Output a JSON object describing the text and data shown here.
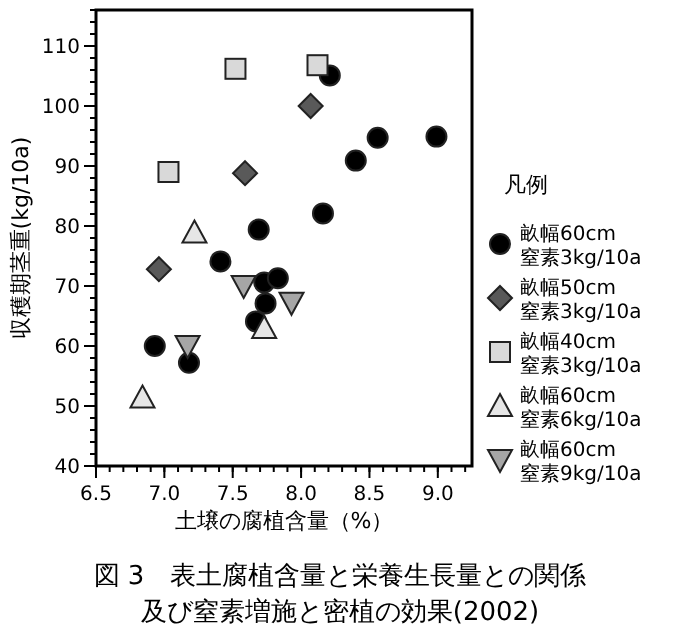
{
  "chart_data": {
    "type": "scatter",
    "title": "図 3　表土腐植含量と栄養生長量との関係及び窒素増施と密植の効果(2002)",
    "xlabel": "土壌の腐植含量（%）",
    "ylabel": "収穫期茎重(kg/10a)",
    "legend_title": "凡例",
    "legend": "right",
    "grid": false,
    "xlim": [
      6.5,
      9.25
    ],
    "xticks": [
      {
        "value": 6.5,
        "label": "6.5"
      },
      {
        "value": 7.0,
        "label": "7.0"
      },
      {
        "value": 7.5,
        "label": "7.5"
      },
      {
        "value": 8.0,
        "label": "8.0"
      },
      {
        "value": 8.5,
        "label": "8.5"
      },
      {
        "value": 9.0,
        "label": "9.0"
      }
    ],
    "ylim": [
      40,
      116
    ],
    "yticks": [
      40,
      50,
      60,
      70,
      80,
      90,
      100,
      110
    ],
    "series": [
      {
        "name": "畝幅60cm\n窒素3kg/10a",
        "color": "#000000",
        "marker": "circle",
        "x": [
          6.93,
          7.18,
          7.41,
          7.69,
          7.67,
          7.73,
          7.74,
          7.83,
          8.16,
          8.21,
          8.4,
          8.56,
          8.99
        ],
        "values": [
          60,
          57.2,
          74.1,
          79.4,
          64.1,
          70.6,
          67.1,
          71.3,
          82.1,
          105.1,
          90.9,
          94.7,
          94.9
        ]
      },
      {
        "name": "畝幅50cm\n窒素3kg/10a",
        "color": "#595959",
        "marker": "diamond",
        "x": [
          6.96,
          7.59,
          8.07
        ],
        "values": [
          72.8,
          88.8,
          100
        ]
      },
      {
        "name": "畝幅40cm\n窒素3kg/10a",
        "color": "#d9d9d9",
        "marker": "square",
        "x": [
          7.03,
          7.52,
          8.12
        ],
        "values": [
          89,
          106.2,
          106.8
        ]
      },
      {
        "name": "畝幅60cm\n窒素6kg/10a",
        "color": "#e6e6e6",
        "marker": "triangle",
        "x": [
          6.84,
          7.22,
          7.73
        ],
        "values": [
          51.4,
          78.9,
          63
        ]
      },
      {
        "name": "畝幅60cm\n窒素9kg/10a",
        "color": "#a6a6a6",
        "marker": "triangle-down",
        "x": [
          7.17,
          7.58,
          7.93
        ],
        "values": [
          60,
          70,
          67.2
        ]
      }
    ]
  }
}
